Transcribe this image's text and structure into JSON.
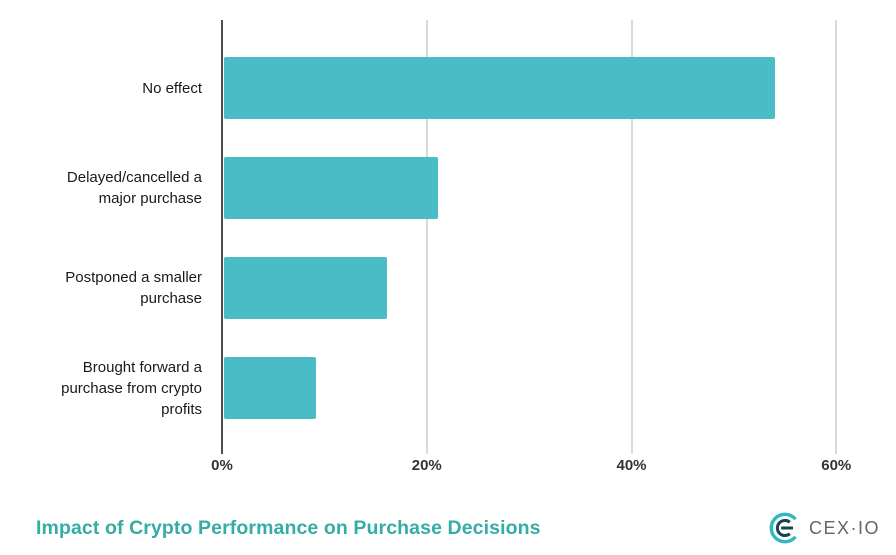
{
  "chart_data": {
    "type": "bar",
    "orientation": "horizontal",
    "title": "Impact of Crypto Performance on Purchase Decisions",
    "categories": [
      "No effect",
      "Delayed/cancelled a major purchase",
      "Postponed a smaller purchase",
      "Brought forward a purchase from crypto profits"
    ],
    "values": [
      54,
      21,
      16,
      9
    ],
    "value_unit": "%",
    "xlabel": "",
    "ylabel": "",
    "xlim": [
      0,
      63.1
    ],
    "xticks": [
      0,
      20,
      40,
      60
    ],
    "xtick_labels": [
      "0%",
      "20%",
      "40%",
      "60%"
    ],
    "grid": "vertical gridlines at ticks",
    "legend": "none"
  },
  "footer": {
    "brand_wordmark": "CEX·IO"
  },
  "colors": {
    "background": "#ffffff",
    "bar": "#49bcc5",
    "axis_line": "#4d4d4d",
    "gridline": "#dadada",
    "tick_label": "#333333",
    "category_label": "#1a1a1a",
    "title": "#35aca6",
    "brand_wordmark": "#5d6770",
    "logo_teal": "#2fb9bf",
    "logo_navy": "#1c4151"
  }
}
